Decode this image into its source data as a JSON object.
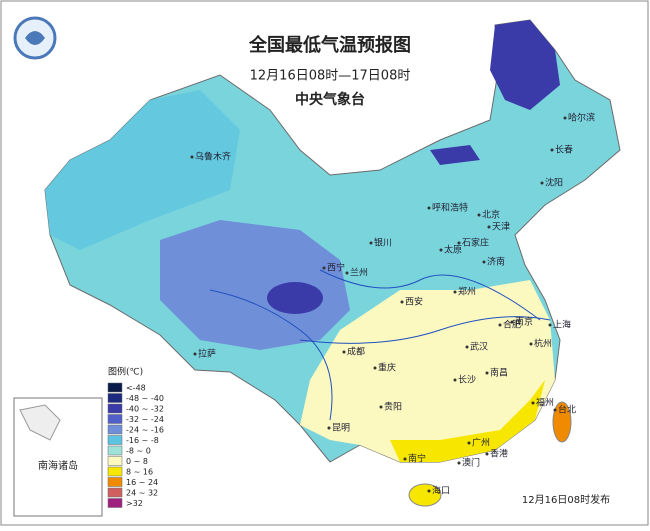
{
  "header": {
    "title": "全国最低气温预报图",
    "period": "12月16日08时—17日08时",
    "issuer": "中央气象台"
  },
  "legend": {
    "title": "图例(℃)",
    "items": [
      {
        "label": "<-48",
        "color": "#0a1a4a"
      },
      {
        "label": "-48 ~ -40",
        "color": "#1c2a80"
      },
      {
        "label": "-40 ~ -32",
        "color": "#3a3aa8"
      },
      {
        "label": "-32 ~ -24",
        "color": "#5060c8"
      },
      {
        "label": "-24 ~ -16",
        "color": "#6f8fd8"
      },
      {
        "label": "-16 ~ -8",
        "color": "#5cc3e0"
      },
      {
        "label": "-8 ~ 0",
        "color": "#9fe3d8"
      },
      {
        "label": "0 ~ 8",
        "color": "#fbf8c0"
      },
      {
        "label": "8 ~ 16",
        "color": "#f6e600"
      },
      {
        "label": "16 ~ 24",
        "color": "#f08a00"
      },
      {
        "label": "24 ~ 32",
        "color": "#d06060"
      },
      {
        "label": ">32",
        "color": "#a02080"
      }
    ]
  },
  "cities": [
    "乌鲁木齐",
    "哈尔滨",
    "长春",
    "沈阳",
    "呼和浩特",
    "北京",
    "天津",
    "银川",
    "太原",
    "石家庄",
    "济南",
    "西宁",
    "兰州",
    "郑州",
    "西安",
    "合肥",
    "南京",
    "上海",
    "拉萨",
    "成都",
    "重庆",
    "武汉",
    "杭州",
    "长沙",
    "南昌",
    "贵阳",
    "福州",
    "台北",
    "昆明",
    "南宁",
    "广州",
    "香港",
    "澳门",
    "海口"
  ],
  "inset": {
    "label": "南海诸岛"
  },
  "footer": {
    "release": "12月16日08时发布"
  }
}
